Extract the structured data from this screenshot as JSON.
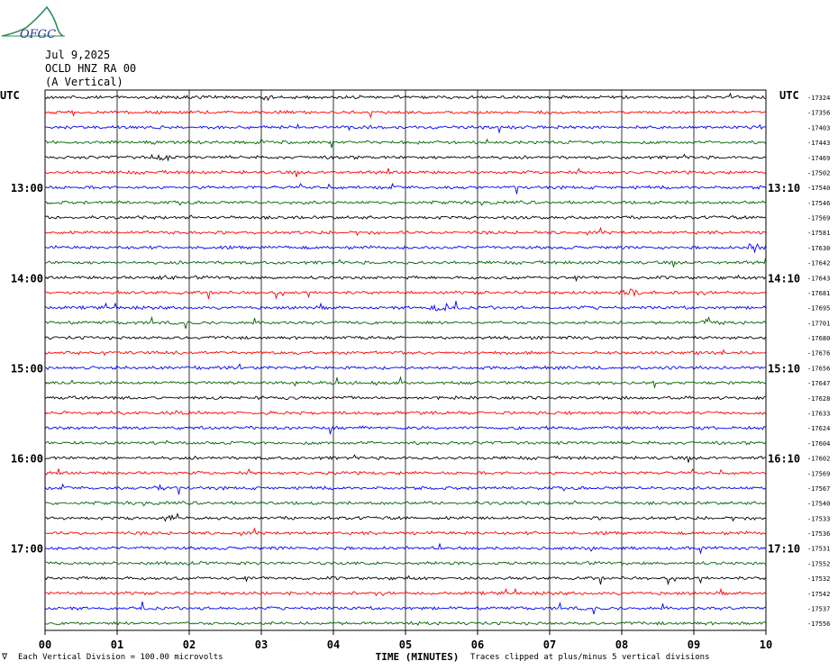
{
  "header": {
    "logo_text": "OFGC",
    "date": "Jul 9,2025",
    "station": "OCLD HNZ RA 00",
    "component": "(A Vertical)"
  },
  "chart_data": {
    "type": "line",
    "title": "",
    "left_axis_title": "UTC",
    "right_axis_title": "UTC",
    "xlabel": "TIME (MINUTES)",
    "x_ticks": [
      "00",
      "01",
      "02",
      "03",
      "04",
      "05",
      "06",
      "07",
      "08",
      "09",
      "10"
    ],
    "xlim": [
      0,
      10
    ],
    "rows_per_hour": 6,
    "start_time": "12:00",
    "trace_colors": [
      "#000000",
      "#ff0000",
      "#0000ff",
      "#006400"
    ],
    "hour_labels_left": [
      {
        "row": 6,
        "text": "13:00"
      },
      {
        "row": 12,
        "text": "14:00"
      },
      {
        "row": 18,
        "text": "15:00"
      },
      {
        "row": 24,
        "text": "16:00"
      },
      {
        "row": 30,
        "text": "17:00"
      }
    ],
    "hour_labels_right": [
      {
        "row": 6,
        "text": "13:10"
      },
      {
        "row": 12,
        "text": "14:10"
      },
      {
        "row": 18,
        "text": "15:10"
      },
      {
        "row": 24,
        "text": "16:10"
      },
      {
        "row": 30,
        "text": "17:10"
      }
    ],
    "trace_offsets": [
      -17324,
      -17356,
      -17403,
      -17443,
      -17469,
      -17502,
      -17540,
      -17546,
      -17569,
      -17581,
      -17630,
      -17642,
      -17643,
      -17681,
      -17695,
      -17701,
      -17680,
      -17676,
      -17656,
      -17647,
      -17628,
      -17633,
      -17624,
      -17604,
      -17602,
      -17569,
      -17567,
      -17540,
      -17533,
      -17536,
      -17531,
      -17552,
      -17532,
      -17542,
      -17537,
      -17556
    ],
    "events": [
      {
        "row": 4,
        "minute": 1.6,
        "amp": 5
      },
      {
        "row": 10,
        "minute": 9.85,
        "amp": 6
      },
      {
        "row": 12,
        "minute": 1.65,
        "amp": 3
      },
      {
        "row": 13,
        "minute": 8.15,
        "amp": 6
      },
      {
        "row": 14,
        "minute": 5.5,
        "amp": 6
      },
      {
        "row": 15,
        "minute": 9.2,
        "amp": 5
      },
      {
        "row": 26,
        "minute": 1.6,
        "amp": 4
      },
      {
        "row": 28,
        "minute": 1.75,
        "amp": 4
      }
    ]
  },
  "footer": {
    "scale_note": "Each Vertical Division =  100.00 microvolts",
    "clip_note": "Traces clipped at plus/minus 5 vertical divisions"
  }
}
